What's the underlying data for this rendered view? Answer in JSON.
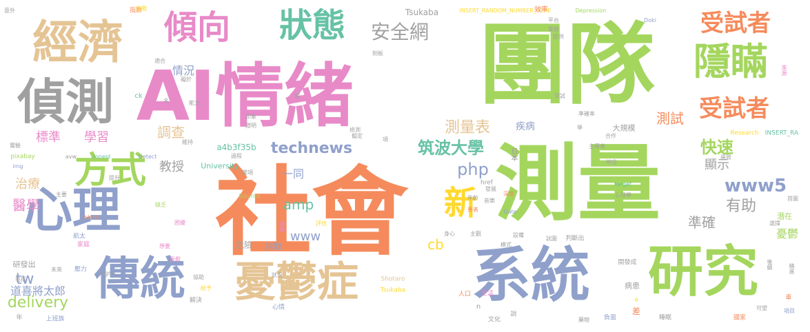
{
  "words": [
    {
      "text": "團隊",
      "color": "#a4d65e"
    },
    {
      "text": "AI情緒",
      "color": "#e88ac8"
    },
    {
      "text": "社會",
      "color": "#f58b5c"
    },
    {
      "text": "測量",
      "color": "#a4d65e"
    },
    {
      "text": "系統",
      "color": "#8fa0cb"
    },
    {
      "text": "研究",
      "color": "#a4d65e"
    },
    {
      "text": "經濟",
      "color": "#e5c494"
    },
    {
      "text": "偵測",
      "color": "#a0a0a0"
    },
    {
      "text": "心理",
      "color": "#8fa0cb"
    },
    {
      "text": "傳統",
      "color": "#8fa0cb"
    },
    {
      "text": "憂鬱症",
      "color": "#e5c494"
    },
    {
      "text": "傾向",
      "color": "#e88ac8"
    },
    {
      "text": "狀態",
      "color": "#66c2a5"
    },
    {
      "text": "隱瞞",
      "color": "#a4d65e"
    },
    {
      "text": "受試者",
      "color": "#f58b5c"
    },
    {
      "text": "受試者",
      "color": "#f58b5c"
    },
    {
      "text": "方式",
      "color": "#a4d65e"
    },
    {
      "text": "新",
      "color": "#ffd92f"
    },
    {
      "text": "安全網",
      "color": "#a0a0a0"
    },
    {
      "text": "測量表",
      "color": "#e5c494"
    },
    {
      "text": "technews",
      "color": "#8fa0cb"
    },
    {
      "text": "筑波大學",
      "color": "#66c2a5"
    },
    {
      "text": "www5",
      "color": "#8fa0cb"
    },
    {
      "text": "快速",
      "color": "#a4d65e"
    },
    {
      "text": "有助",
      "color": "#a0a0a0"
    },
    {
      "text": "測試",
      "color": "#f58b5c"
    },
    {
      "text": "php",
      "color": "#8fa0cb"
    },
    {
      "text": "amp",
      "color": "#66c2a5"
    },
    {
      "text": "www",
      "color": "#8fa0cb"
    },
    {
      "text": "cb",
      "color": "#ffd92f"
    },
    {
      "text": "tw",
      "color": "#8fa0cb"
    },
    {
      "text": "delivery",
      "color": "#a4d65e"
    },
    {
      "text": "道喜將太郎",
      "color": "#8fa0cb"
    },
    {
      "text": "醫學",
      "color": "#e88ac8"
    },
    {
      "text": "治療",
      "color": "#e5c494"
    },
    {
      "text": "標準",
      "color": "#e88ac8"
    },
    {
      "text": "學習",
      "color": "#e88ac8"
    },
    {
      "text": "調查",
      "color": "#e5c494"
    },
    {
      "text": "教授",
      "color": "#a0a0a0"
    },
    {
      "text": "情況",
      "color": "#8fa0cb"
    },
    {
      "text": "一同",
      "color": "#8fa0cb"
    },
    {
      "text": "準確",
      "color": "#a0a0a0"
    },
    {
      "text": "顯示",
      "color": "#a0a0a0"
    },
    {
      "text": "憂鬱",
      "color": "#a4d65e"
    },
    {
      "text": "疾病",
      "color": "#8fa0cb"
    },
    {
      "text": "大規模",
      "color": "#a0a0a0"
    },
    {
      "text": "日本",
      "color": "#a0a0a0"
    },
    {
      "text": "a4b3f35b",
      "color": "#66c2a5"
    },
    {
      "text": "University",
      "color": "#66c2a5"
    },
    {
      "text": "Tsukaba",
      "color": "#a0a0a0"
    },
    {
      "text": "INSERT_RANDOM_NUMBER_HERE",
      "color": "#ffd92f"
    },
    {
      "text": "Depression",
      "color": "#a4d65e"
    },
    {
      "text": "效率",
      "color": "#f58b5c"
    },
    {
      "text": "危險",
      "color": "#a0a0a0"
    },
    {
      "text": "挑戰",
      "color": "#8fa0cb"
    },
    {
      "text": "潛在",
      "color": "#a4d65e"
    },
    {
      "text": "病患",
      "color": "#a0a0a0"
    },
    {
      "text": "研發出",
      "color": "#a0a0a0"
    },
    {
      "text": "ck",
      "color": "#66c2a5"
    },
    {
      "text": "Signs",
      "color": "#a0a0a0"
    },
    {
      "text": "Shotaro",
      "color": "#e5c494"
    },
    {
      "text": "Tsukaba",
      "color": "#ffd92f"
    },
    {
      "text": "href",
      "color": "#a0a0a0"
    },
    {
      "text": "Source",
      "color": "#a4d65e"
    },
    {
      "text": "Research",
      "color": "#ffd92f"
    },
    {
      "text": "INSERT_RA",
      "color": "#66c2a5"
    },
    {
      "text": "pixabay",
      "color": "#a4d65e"
    },
    {
      "text": "img",
      "color": "#8fa0cb"
    },
    {
      "text": "avw",
      "color": "#a0a0a0"
    },
    {
      "text": "zoneid",
      "color": "#66c2a5"
    },
    {
      "text": "Detect",
      "color": "#8fa0cb"
    },
    {
      "text": "_blank",
      "color": "#f58b5c"
    },
    {
      "text": "Gate",
      "color": "#8fa0cb"
    },
    {
      "text": "target",
      "color": "#66c2a5"
    },
    {
      "text": "Doki",
      "color": "#8fa0cb"
    },
    {
      "text": "上班族",
      "color": "#8fa0cb"
    },
    {
      "text": "解決",
      "color": "#a0a0a0"
    },
    {
      "text": "心情",
      "color": "#8fa0cb"
    },
    {
      "text": "生活",
      "color": "#e88ac8"
    },
    {
      "text": "說",
      "color": "#a0a0a0"
    },
    {
      "text": "負面",
      "color": "#8fa0cb"
    },
    {
      "text": "差",
      "color": "#f58b5c"
    },
    {
      "text": "a",
      "color": "#ffd92f"
    },
    {
      "text": "n",
      "color": "#a0a0a0"
    },
    {
      "text": "文化",
      "color": "#a0a0a0"
    },
    {
      "text": "藥物",
      "color": "#a0a0a0"
    },
    {
      "text": "睡眠",
      "color": "#a0a0a0"
    },
    {
      "text": "國家",
      "color": "#f58b5c"
    },
    {
      "text": "可望",
      "color": "#a0a0a0"
    },
    {
      "text": "項目",
      "color": "#8fa0cb"
    },
    {
      "text": "判斷出",
      "color": "#a0a0a0"
    },
    {
      "text": "開發成",
      "color": "#a0a0a0"
    },
    {
      "text": "設備",
      "color": "#a0a0a0"
    },
    {
      "text": "主觀",
      "color": "#a0a0a0"
    },
    {
      "text": "身心",
      "color": "#a0a0a0"
    },
    {
      "text": "評估",
      "color": "#ffd92f"
    },
    {
      "text": "建構",
      "color": "#e88ac8"
    },
    {
      "text": "想要",
      "color": "#e88ac8"
    },
    {
      "text": "困擾",
      "color": "#e88ac8"
    },
    {
      "text": "貢獻",
      "color": "#e88ac8"
    },
    {
      "text": "航太",
      "color": "#8fa0cb"
    },
    {
      "text": "家庭",
      "color": "#e88ac8"
    },
    {
      "text": "壓力",
      "color": "#8fa0cb"
    },
    {
      "text": "未來",
      "color": "#a0a0a0"
    },
    {
      "text": "包括",
      "color": "#a0a0a0"
    },
    {
      "text": "主要",
      "color": "#a0a0a0"
    },
    {
      "text": "提升",
      "color": "#a0a0a0"
    },
    {
      "text": "實驗",
      "color": "#a0a0a0"
    },
    {
      "text": "缺乏",
      "color": "#a4d65e"
    },
    {
      "text": "能力",
      "color": "#a0a0a0"
    },
    {
      "text": "礙於",
      "color": "#a0a0a0"
    },
    {
      "text": "名",
      "color": "#a0a0a0"
    },
    {
      "text": "印象",
      "color": "#a0a0a0"
    },
    {
      "text": "證明",
      "color": "#a0a0a0"
    },
    {
      "text": "維持",
      "color": "#a0a0a0"
    },
    {
      "text": "變項",
      "color": "#a0a0a0"
    },
    {
      "text": "擬定",
      "color": "#a0a0a0"
    },
    {
      "text": "刻板",
      "color": "#a0a0a0"
    },
    {
      "text": "發展",
      "color": "#a0a0a0"
    },
    {
      "text": "音樂",
      "color": "#a0a0a0"
    },
    {
      "text": "深度",
      "color": "#f58b5c"
    },
    {
      "text": "年齡",
      "color": "#a0a0a0"
    },
    {
      "text": "患者",
      "color": "#f58b5c"
    },
    {
      "text": "模式",
      "color": "#a0a0a0"
    },
    {
      "text": "試圖",
      "color": "#a0a0a0"
    },
    {
      "text": "人口",
      "color": "#f58b5c"
    },
    {
      "text": "給予",
      "color": "#ffd92f"
    },
    {
      "text": "狀況",
      "color": "#a0a0a0"
    },
    {
      "text": "協助",
      "color": "#a0a0a0"
    },
    {
      "text": "指數",
      "color": "#f58b5c"
    },
    {
      "text": "意外",
      "color": "#a0a0a0"
    },
    {
      "text": "適合",
      "color": "#a0a0a0"
    },
    {
      "text": "遊戲",
      "color": "#ffd92f"
    },
    {
      "text": "平台",
      "color": "#a0a0a0"
    },
    {
      "text": "業務",
      "color": "#a0a0a0"
    },
    {
      "text": "提供",
      "color": "#a0a0a0"
    },
    {
      "text": "合作",
      "color": "#a0a0a0"
    },
    {
      "text": "主導者",
      "color": "#a0a0a0"
    },
    {
      "text": "地位",
      "color": "#a0a0a0"
    },
    {
      "text": "導致",
      "color": "#a0a0a0"
    },
    {
      "text": "心理學",
      "color": "#a0a0a0"
    },
    {
      "text": "首圖",
      "color": "#a0a0a0"
    },
    {
      "text": "選擇",
      "color": "#a0a0a0"
    },
    {
      "text": "後續",
      "color": "#a0a0a0"
    },
    {
      "text": "精進",
      "color": "#a0a0a0"
    },
    {
      "text": "準確率",
      "color": "#a0a0a0"
    },
    {
      "text": "受試",
      "color": "#a0a0a0"
    },
    {
      "text": "來源",
      "color": "#e88ac8"
    },
    {
      "text": "學",
      "color": "#a0a0a0"
    },
    {
      "text": "過程",
      "color": "#a0a0a0"
    },
    {
      "text": "檢測",
      "color": "#a0a0a0"
    },
    {
      "text": "項",
      "color": "#a0a0a0"
    },
    {
      "text": "圖",
      "color": "#a0a0a0"
    },
    {
      "text": "車",
      "color": "#f58b5c"
    },
    {
      "text": "年",
      "color": "#a0a0a0"
    }
  ]
}
